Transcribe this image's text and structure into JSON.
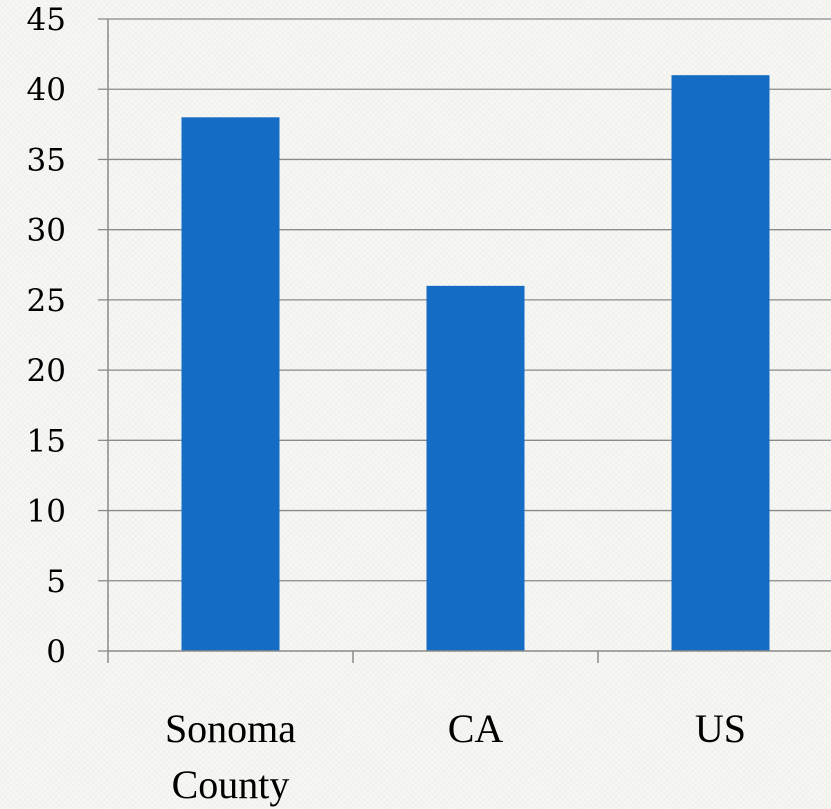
{
  "chart_data": {
    "type": "bar",
    "categories": [
      [
        "Sonoma",
        "County"
      ],
      [
        "CA"
      ],
      [
        "US"
      ]
    ],
    "values": [
      38,
      26,
      41
    ],
    "ylim": [
      0,
      45
    ],
    "yticks": [
      "0",
      "5",
      "10",
      "15",
      "20",
      "25",
      "30",
      "35",
      "40",
      "45"
    ],
    "title": "",
    "xlabel": "",
    "ylabel": "",
    "grid": true,
    "legend": "none",
    "bar_color": "#146cc4",
    "grid_color": "#8a8a8a",
    "axis_color": "#8a8a8a"
  }
}
